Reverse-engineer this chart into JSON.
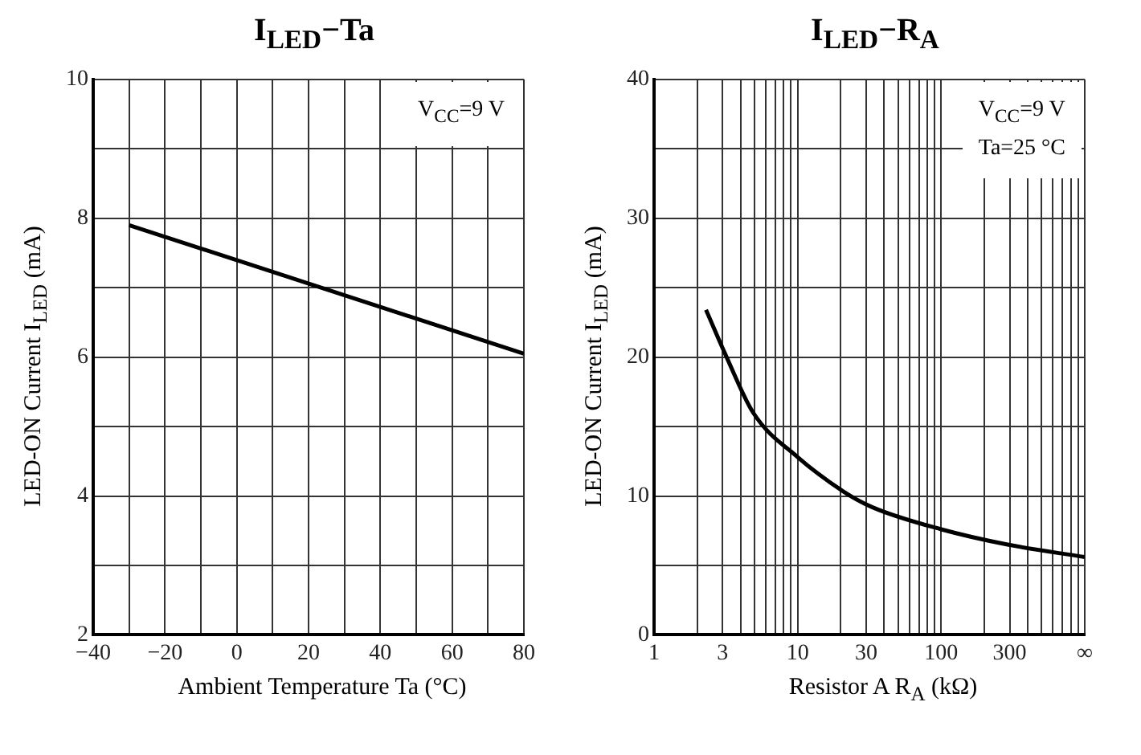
{
  "chart_data": [
    {
      "type": "line",
      "title": "I$_{LED}$−Ta",
      "xlabel": "Ambient Temperature Ta (°C)",
      "ylabel": "LED-ON Current I$_{LED}$ (mA)",
      "x": [
        -30,
        80
      ],
      "series": [
        {
          "color": "#000000",
          "values": [
            7.9,
            6.05
          ]
        }
      ],
      "xlim": [
        -40,
        80
      ],
      "ylim": [
        2,
        10
      ],
      "xticks": [
        {
          "value": -40,
          "label": "−40"
        },
        {
          "value": -30,
          "label": null
        },
        {
          "value": -20,
          "label": "−20"
        },
        {
          "value": -10,
          "label": null
        },
        0,
        {
          "value": 10,
          "label": null
        },
        20,
        {
          "value": 30,
          "label": null
        },
        40,
        {
          "value": 50,
          "label": null
        },
        60,
        {
          "value": 70,
          "label": null
        },
        80
      ],
      "yticks": [
        2,
        {
          "value": 3,
          "label": null
        },
        4,
        {
          "value": 5,
          "label": null
        },
        6,
        {
          "value": 7,
          "label": null
        },
        8,
        {
          "value": 9,
          "label": null
        },
        10
      ],
      "grid": true,
      "marker": "none",
      "line_style": "solid",
      "annotations": [
        "V$_{CC}$=9 V"
      ]
    },
    {
      "type": "line",
      "title": "I$_{LED}$−R$_{A}$",
      "xlabel": "Resistor A R$_{A}$ (kΩ)",
      "ylabel": "LED-ON Current I$_{LED}$ (mA)",
      "x": [
        2.3,
        3.2,
        4.9,
        10,
        21,
        33,
        100,
        290,
        1000
      ],
      "series": [
        {
          "color": "#000000",
          "values": [
            23.4,
            20,
            16,
            12.8,
            10.3,
            9.2,
            7.6,
            6.5,
            5.6
          ]
        }
      ],
      "log": "x",
      "xlim": [
        1,
        1000
      ],
      "ylim": [
        0,
        40
      ],
      "xticks": [
        1,
        {
          "value": 2,
          "label": null
        },
        3,
        {
          "value": 4,
          "label": null
        },
        {
          "value": 5,
          "label": null
        },
        {
          "value": 6,
          "label": null
        },
        {
          "value": 7,
          "label": null
        },
        {
          "value": 8,
          "label": null
        },
        {
          "value": 9,
          "label": null
        },
        10,
        {
          "value": 20,
          "label": null
        },
        30,
        {
          "value": 40,
          "label": null
        },
        {
          "value": 50,
          "label": null
        },
        {
          "value": 60,
          "label": null
        },
        {
          "value": 70,
          "label": null
        },
        {
          "value": 80,
          "label": null
        },
        {
          "value": 90,
          "label": null
        },
        100,
        {
          "value": 200,
          "label": null
        },
        300,
        {
          "value": 400,
          "label": null
        },
        {
          "value": 500,
          "label": null
        },
        {
          "value": 600,
          "label": null
        },
        {
          "value": 700,
          "label": null
        },
        {
          "value": 800,
          "label": null
        },
        {
          "value": 900,
          "label": null
        },
        {
          "value": 1000,
          "label": "∞"
        }
      ],
      "yticks": [
        0,
        {
          "value": 5,
          "label": null
        },
        10,
        {
          "value": 15,
          "label": null
        },
        20,
        {
          "value": 25,
          "label": null
        },
        30,
        {
          "value": 35,
          "label": null
        },
        40
      ],
      "grid": true,
      "marker": "none",
      "line_style": "solid",
      "annotations": [
        "V$_{CC}$=9 V",
        "Ta=25 °C"
      ]
    }
  ]
}
